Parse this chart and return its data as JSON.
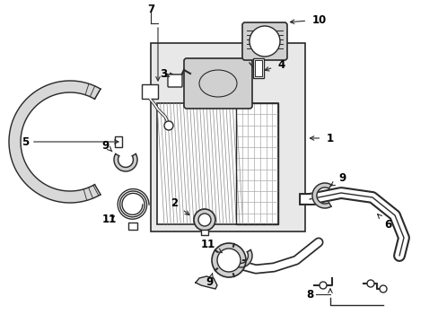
{
  "bg_color": "#ffffff",
  "line_color": "#2a2a2a",
  "label_color": "#000000",
  "fig_w": 4.89,
  "fig_h": 3.6,
  "dpi": 100
}
